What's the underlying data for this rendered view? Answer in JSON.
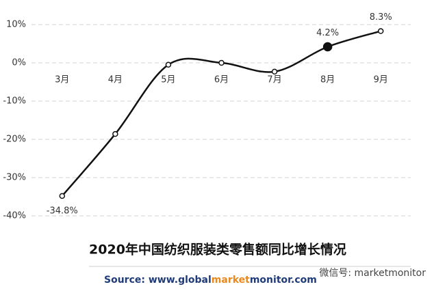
{
  "chart_data": {
    "type": "line",
    "title": "2020年中国纺织服装类零售额同比增长情况",
    "source": [
      "Source: www.global",
      "market",
      "monitor",
      ".com"
    ],
    "source_colors": [
      "#1f3b7a",
      "#e8891c",
      "#1f3b7a",
      "#1f3b7a"
    ],
    "watermark": "微信号: marketmonitor",
    "categories": [
      "3月",
      "4月",
      "5月",
      "6月",
      "7月",
      "8月",
      "9月"
    ],
    "series": [
      {
        "name": "零售额同比",
        "color": "#111111",
        "values": [
          -34.8,
          -18.6,
          -0.5,
          0,
          -2.3,
          4.2,
          8.3
        ],
        "value_labels": [
          "-34.8%",
          null,
          null,
          null,
          null,
          "4.2%",
          "8.3%"
        ]
      }
    ],
    "highlight_category": "8月",
    "ylim": [
      -40,
      10
    ],
    "yticks": [
      {
        "value": -40,
        "label": "-40%"
      },
      {
        "value": -30,
        "label": "-30%"
      },
      {
        "value": -20,
        "label": "-20%"
      },
      {
        "value": -10,
        "label": "-10%"
      },
      {
        "value": 0,
        "label": "0%"
      },
      {
        "value": 10,
        "label": "10%"
      }
    ],
    "grid": true
  }
}
